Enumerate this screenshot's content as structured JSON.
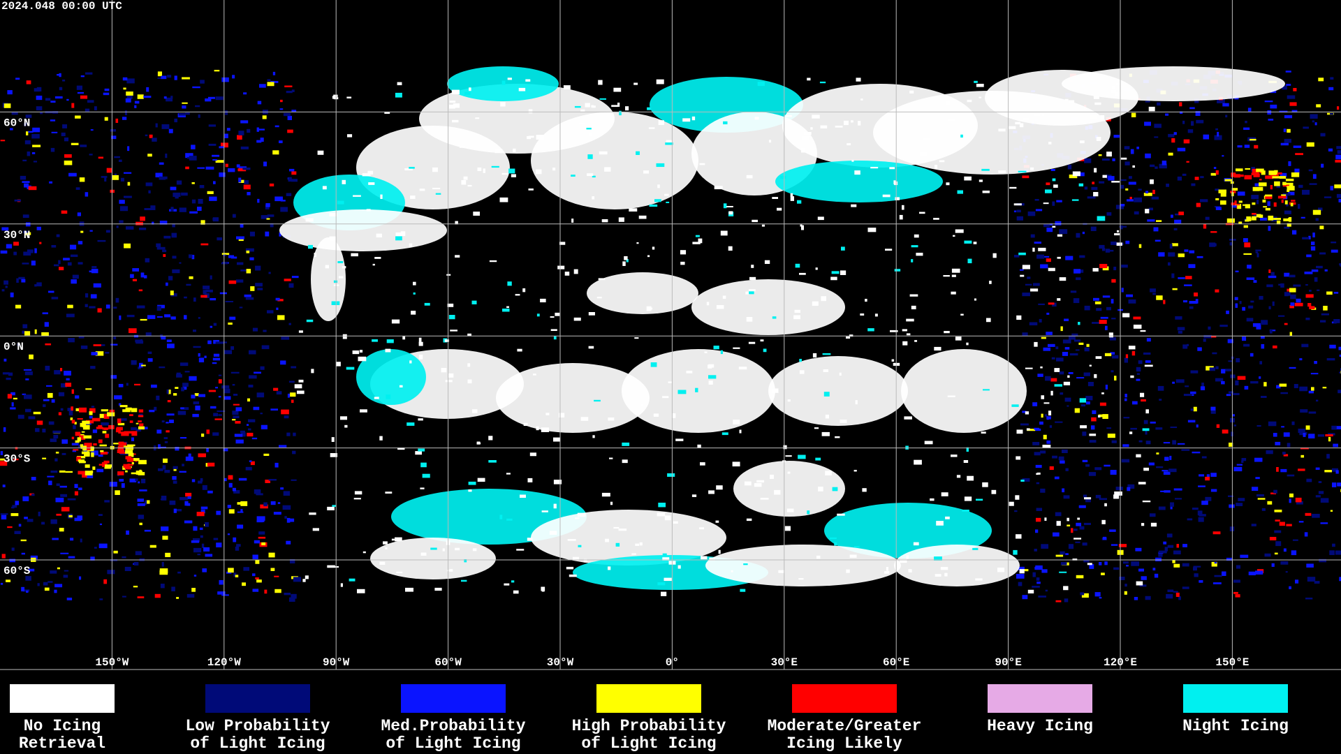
{
  "header": {
    "timestamp": "2024.048 00:00 UTC"
  },
  "map": {
    "longitude_labels": [
      "150°W",
      "120°W",
      "90°W",
      "60°W",
      "30°W",
      "0°",
      "30°E",
      "60°E",
      "90°E",
      "120°E",
      "150°E"
    ],
    "latitude_labels": [
      "60°N",
      "30°N",
      "0°N",
      "30°S",
      "60°S"
    ]
  },
  "legend": {
    "items": [
      {
        "color": "#ffffff",
        "lines": [
          "No Icing",
          "Retrieval"
        ]
      },
      {
        "color": "#000a78",
        "lines": [
          "Low Probability",
          "of Light Icing"
        ]
      },
      {
        "color": "#0a14ff",
        "lines": [
          "Med.Probability",
          "of Light Icing"
        ]
      },
      {
        "color": "#ffff00",
        "lines": [
          "High Probability",
          "of Light Icing"
        ]
      },
      {
        "color": "#ff0000",
        "lines": [
          "Moderate/Greater",
          "Icing Likely"
        ]
      },
      {
        "color": "#e6aae6",
        "lines": [
          "Heavy Icing"
        ]
      },
      {
        "color": "#00f0f0",
        "lines": [
          "Night Icing"
        ]
      }
    ]
  }
}
